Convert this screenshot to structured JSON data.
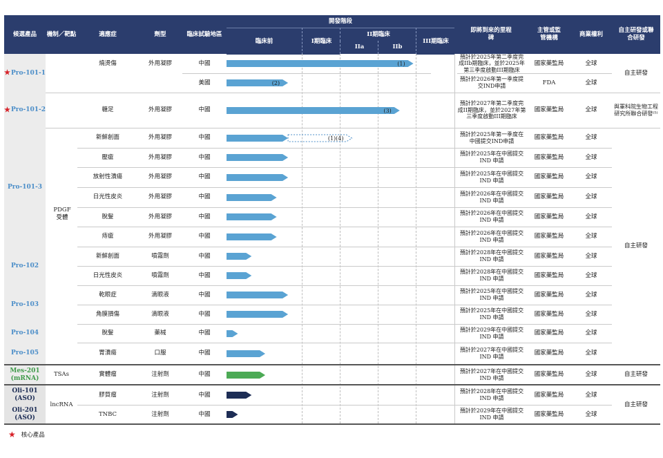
{
  "headers": {
    "candidate": "候選產品",
    "mechanism": "機制／靶點",
    "indication": "適應症",
    "dosage_form": "劑型",
    "trial_region": "臨床試驗地區",
    "stage": "開發階段",
    "preclinical": "臨床前",
    "phase1": "I期臨床",
    "phase2": "II期臨床",
    "phase2a": "IIa",
    "phase2b": "IIb",
    "phase3": "III期臨床",
    "milestone": "即將到來的里程碑",
    "regulator": "主管或監管機構",
    "rights": "商業權利",
    "rd": "自主研發或聯合研發"
  },
  "products": [
    {
      "name": "Pro-101-1",
      "core": true
    },
    {
      "name": "Pro-101-2",
      "core": true
    },
    {
      "name": "Pro-101-3",
      "core": false
    },
    {
      "name": "Pro-102",
      "core": false
    },
    {
      "name": "Pro-103",
      "core": false
    },
    {
      "name": "Pro-104",
      "core": false
    },
    {
      "name": "Pro-105",
      "core": false
    },
    {
      "name": "Mes-201 (mRNA)",
      "core": false
    },
    {
      "name": "Oli-101 (ASO)",
      "core": false
    },
    {
      "name": "Oli-201 (ASO)",
      "core": false
    }
  ],
  "mechanisms": {
    "pdgf": "PDGF 受體",
    "tsas": "TSAs",
    "lncrna": "lncRNA"
  },
  "rows": [
    {
      "indication": "燒燙傷",
      "form": "外用凝膠",
      "region": "中國",
      "progress": 0.82,
      "color": "#5aa3d3",
      "label": "(1)",
      "milestone": "預計於2025年第二季度完成IIb期臨床，並於2025年第三季度啟動III期臨床",
      "regulator": "國家藥監局",
      "rights": "全球"
    },
    {
      "indication": "",
      "form": "",
      "region": "美國",
      "progress": 0.27,
      "color": "#5aa3d3",
      "label": "(2)",
      "milestone": "預計於2026年第一季度提交IND申請",
      "regulator": "FDA",
      "rights": "全球"
    },
    {
      "indication": "糖足",
      "form": "外用凝膠",
      "region": "中國",
      "progress": 0.76,
      "color": "#5aa3d3",
      "label": "(3)",
      "milestone": "預計於2027年第二季度完成II期臨床，並於2027年第三季度啟動III期臨床",
      "regulator": "國家藥監局",
      "rights": "全球"
    },
    {
      "indication": "新鮮創面",
      "form": "外用凝膠",
      "region": "中國",
      "progress": 0.27,
      "dashed_to": 0.55,
      "color": "#5aa3d3",
      "label": "(1)(4)",
      "milestone": "預計於2025年第一季度在中國提交IND申請",
      "regulator": "國家藥監局",
      "rights": "全球"
    },
    {
      "indication": "壓瘡",
      "form": "外用凝膠",
      "region": "中國",
      "progress": 0.27,
      "color": "#5aa3d3",
      "label": "",
      "milestone": "預計於2025年在中國提交 IND 申請",
      "regulator": "國家藥監局",
      "rights": "全球"
    },
    {
      "indication": "放射性潰瘍",
      "form": "外用凝膠",
      "region": "中國",
      "progress": 0.27,
      "color": "#5aa3d3",
      "label": "",
      "milestone": "預計於2025年在中國提交 IND 申請",
      "regulator": "國家藥監局",
      "rights": "全球"
    },
    {
      "indication": "日光性皮炎",
      "form": "外用凝膠",
      "region": "中國",
      "progress": 0.22,
      "color": "#5aa3d3",
      "label": "",
      "milestone": "預計於2026年在中國提交 IND 申請",
      "regulator": "國家藥監局",
      "rights": "全球"
    },
    {
      "indication": "脫髮",
      "form": "外用凝膠",
      "region": "中國",
      "progress": 0.22,
      "color": "#5aa3d3",
      "label": "",
      "milestone": "預計於2026年在中國提交 IND 申請",
      "regulator": "國家藥監局",
      "rights": "全球"
    },
    {
      "indication": "痔瘡",
      "form": "外用凝膠",
      "region": "中國",
      "progress": 0.22,
      "color": "#5aa3d3",
      "label": "",
      "milestone": "預計於2026年在中國提交 IND 申請",
      "regulator": "國家藥監局",
      "rights": "全球"
    },
    {
      "indication": "新鮮創面",
      "form": "噴霧劑",
      "region": "中國",
      "progress": 0.11,
      "color": "#5aa3d3",
      "label": "",
      "milestone": "預計於2028年在中國提交 IND 申請",
      "regulator": "國家藥監局",
      "rights": "全球"
    },
    {
      "indication": "日光性皮炎",
      "form": "噴霧劑",
      "region": "中國",
      "progress": 0.11,
      "color": "#5aa3d3",
      "label": "",
      "milestone": "預計於2028年在中國提交 IND 申請",
      "regulator": "國家藥監局",
      "rights": "全球"
    },
    {
      "indication": "乾眼症",
      "form": "滴眼液",
      "region": "中國",
      "progress": 0.27,
      "color": "#5aa3d3",
      "label": "",
      "milestone": "預計於2025年在中國提交 IND 申請",
      "regulator": "國家藥監局",
      "rights": "全球"
    },
    {
      "indication": "角膜損傷",
      "form": "滴眼液",
      "region": "中國",
      "progress": 0.27,
      "color": "#5aa3d3",
      "label": "",
      "milestone": "預計於2025年在中國提交 IND 申請",
      "regulator": "國家藥監局",
      "rights": "全球"
    },
    {
      "indication": "脫髮",
      "form": "藥械",
      "region": "中國",
      "progress": 0.05,
      "color": "#5aa3d3",
      "label": "",
      "milestone": "預計於2029年在中國提交 IND 申請",
      "regulator": "國家藥監局",
      "rights": "全球"
    },
    {
      "indication": "胃潰瘍",
      "form": "口服",
      "region": "中國",
      "progress": 0.17,
      "color": "#5aa3d3",
      "label": "",
      "milestone": "預計於2027年在中國提交 IND 申請",
      "regulator": "國家藥監局",
      "rights": "全球"
    },
    {
      "indication": "實體瘤",
      "form": "注射劑",
      "region": "中國",
      "progress": 0.17,
      "color": "#4caa55",
      "label": "",
      "milestone": "預計於2027年在中國提交 IND 申請",
      "regulator": "國家藥監局",
      "rights": "全球"
    },
    {
      "indication": "膠質瘤",
      "form": "注射劑",
      "region": "中國",
      "progress": 0.11,
      "color": "#1d2d55",
      "label": "",
      "milestone": "預計於2028年在中國提交 IND 申請",
      "regulator": "國家藥監局",
      "rights": "全球"
    },
    {
      "indication": "TNBC",
      "form": "注射劑",
      "region": "中國",
      "progress": 0.05,
      "color": "#1d2d55",
      "label": "",
      "milestone": "預計於2029年在中國提交 IND 申請",
      "regulator": "國家藥監局",
      "rights": "全球"
    }
  ],
  "rd_groups": {
    "g1": "自主研發",
    "g2": "與軍科院生物工程研究所聯合研發⁽⁵⁾",
    "g3": "自主研發",
    "g4": "自主研發",
    "g5": "自主研發"
  },
  "legend": {
    "star_label": "核心產品",
    "star_color": "#d72027"
  }
}
